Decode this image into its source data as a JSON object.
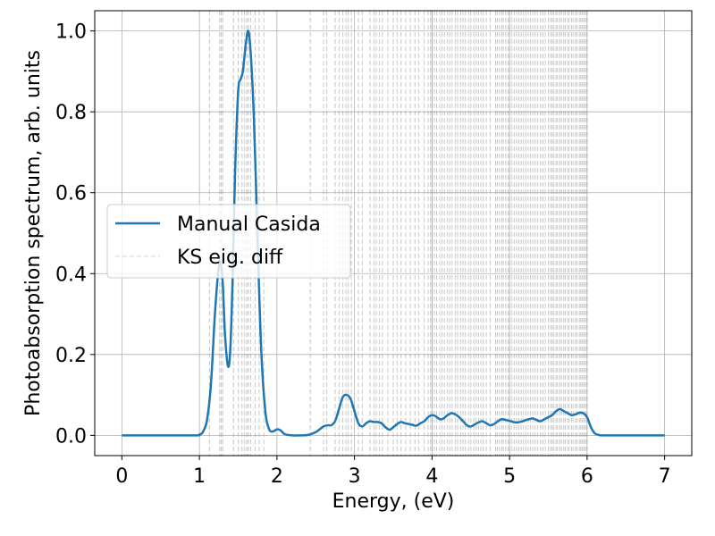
{
  "chart_data": {
    "type": "line",
    "title": "",
    "xlabel": "Energy, (eV)",
    "ylabel": "Photoabsorption spectrum, arb. units",
    "xlim": [
      -0.35,
      7.35
    ],
    "ylim": [
      -0.05,
      1.05
    ],
    "grid": true,
    "legend_position": "center-left",
    "x_ticks": [
      0,
      1,
      2,
      3,
      4,
      5,
      6,
      7
    ],
    "x_tick_labels": [
      "0",
      "1",
      "2",
      "3",
      "4",
      "5",
      "6",
      "7"
    ],
    "y_ticks": [
      0.0,
      0.2,
      0.4,
      0.6,
      0.8,
      1.0
    ],
    "y_tick_labels": [
      "0.0",
      "0.2",
      "0.4",
      "0.6",
      "0.8",
      "1.0"
    ],
    "colors": {
      "line": "#1f77b4",
      "vlines": "#808080",
      "grid": "#b0b0b0"
    },
    "series": [
      {
        "name": "Manual Casida",
        "style": "solid",
        "x": [
          0.0,
          0.9,
          1.0,
          1.05,
          1.1,
          1.15,
          1.2,
          1.25,
          1.27,
          1.3,
          1.33,
          1.37,
          1.4,
          1.43,
          1.46,
          1.5,
          1.53,
          1.56,
          1.6,
          1.63,
          1.66,
          1.7,
          1.73,
          1.76,
          1.8,
          1.85,
          1.9,
          1.95,
          2.0,
          2.05,
          2.1,
          2.2,
          2.3,
          2.4,
          2.5,
          2.55,
          2.6,
          2.65,
          2.7,
          2.75,
          2.8,
          2.85,
          2.9,
          2.95,
          3.0,
          3.05,
          3.1,
          3.15,
          3.2,
          3.25,
          3.3,
          3.35,
          3.4,
          3.45,
          3.5,
          3.55,
          3.6,
          3.65,
          3.7,
          3.75,
          3.8,
          3.85,
          3.9,
          3.95,
          4.0,
          4.05,
          4.1,
          4.15,
          4.2,
          4.25,
          4.3,
          4.35,
          4.4,
          4.45,
          4.5,
          4.55,
          4.6,
          4.65,
          4.7,
          4.75,
          4.8,
          4.85,
          4.9,
          4.95,
          5.0,
          5.05,
          5.1,
          5.15,
          5.2,
          5.25,
          5.3,
          5.35,
          5.4,
          5.45,
          5.5,
          5.55,
          5.6,
          5.65,
          5.7,
          5.75,
          5.8,
          5.85,
          5.9,
          5.95,
          6.0,
          6.05,
          6.1,
          6.15,
          6.2,
          6.3,
          6.5,
          7.0
        ],
        "y": [
          0.0,
          0.0,
          0.002,
          0.01,
          0.04,
          0.13,
          0.3,
          0.42,
          0.43,
          0.38,
          0.25,
          0.17,
          0.22,
          0.4,
          0.65,
          0.85,
          0.88,
          0.9,
          0.97,
          1.0,
          0.95,
          0.8,
          0.62,
          0.42,
          0.2,
          0.06,
          0.015,
          0.01,
          0.015,
          0.012,
          0.003,
          0.0,
          0.0,
          0.001,
          0.008,
          0.015,
          0.022,
          0.025,
          0.025,
          0.035,
          0.065,
          0.095,
          0.1,
          0.09,
          0.06,
          0.03,
          0.022,
          0.03,
          0.035,
          0.033,
          0.033,
          0.03,
          0.02,
          0.014,
          0.02,
          0.028,
          0.033,
          0.03,
          0.028,
          0.026,
          0.024,
          0.03,
          0.035,
          0.045,
          0.05,
          0.047,
          0.04,
          0.042,
          0.05,
          0.055,
          0.052,
          0.045,
          0.035,
          0.025,
          0.022,
          0.027,
          0.032,
          0.035,
          0.03,
          0.025,
          0.028,
          0.035,
          0.04,
          0.038,
          0.036,
          0.033,
          0.032,
          0.034,
          0.037,
          0.04,
          0.042,
          0.038,
          0.035,
          0.04,
          0.045,
          0.05,
          0.06,
          0.065,
          0.06,
          0.055,
          0.05,
          0.052,
          0.056,
          0.055,
          0.045,
          0.02,
          0.005,
          0.001,
          0.0,
          0.0,
          0.0,
          0.0
        ]
      },
      {
        "name": "KS eig. diff",
        "style": "dashed-vertical-lines",
        "x": [
          1.13,
          1.26,
          1.28,
          1.3,
          1.44,
          1.5,
          1.55,
          1.58,
          1.61,
          1.63,
          1.66,
          1.72,
          1.77,
          1.83,
          2.43,
          2.6,
          2.64,
          2.75,
          2.8,
          2.85,
          2.89,
          2.92,
          2.96,
          3.05,
          3.1,
          3.2,
          3.25,
          3.28,
          3.32,
          3.36,
          3.43,
          3.5,
          3.55,
          3.6,
          3.66,
          3.72,
          3.78,
          3.83,
          3.9,
          3.95,
          3.98,
          4.0,
          4.03,
          4.06,
          4.1,
          4.13,
          4.16,
          4.2,
          4.23,
          4.26,
          4.3,
          4.33,
          4.37,
          4.4,
          4.43,
          4.47,
          4.5,
          4.54,
          4.57,
          4.6,
          4.63,
          4.66,
          4.7,
          4.75,
          4.82,
          4.84,
          4.87,
          4.9,
          4.92,
          4.95,
          4.98,
          5.0,
          5.03,
          5.06,
          5.09,
          5.12,
          5.15,
          5.18,
          5.21,
          5.24,
          5.27,
          5.3,
          5.33,
          5.36,
          5.4,
          5.43,
          5.46,
          5.5,
          5.53,
          5.55,
          5.57,
          5.6,
          5.62,
          5.65,
          5.67,
          5.7,
          5.72,
          5.75,
          5.77,
          5.8,
          5.82,
          5.85,
          5.87,
          5.9,
          5.92,
          5.94,
          5.96,
          5.98,
          6.0
        ]
      }
    ]
  }
}
